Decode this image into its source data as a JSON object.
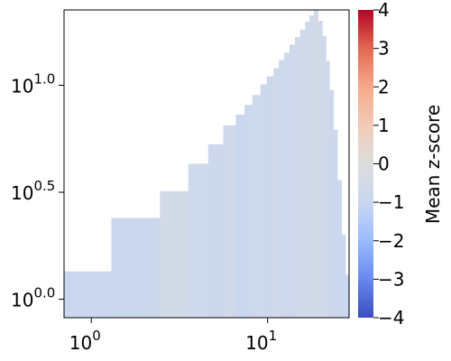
{
  "chart_data": {
    "type": "heatmap",
    "title": "",
    "xlabel": "",
    "ylabel": "",
    "xscale": "log",
    "yscale": "log",
    "xlim": [
      0.7,
      29
    ],
    "ylim": [
      0.82,
      22.5
    ],
    "x_ticks": [
      {
        "value": 1,
        "base": "10",
        "exp": "0"
      },
      {
        "value": 10,
        "base": "10",
        "exp": "1"
      }
    ],
    "y_ticks": [
      {
        "value": 1,
        "base": "10",
        "exp": "0.0"
      },
      {
        "value": 3.1623,
        "base": "10",
        "exp": "0.5"
      },
      {
        "value": 10,
        "base": "10",
        "exp": "1.0"
      }
    ],
    "colorbar": {
      "label": "Mean z-score",
      "min": -4,
      "max": 4,
      "ticks": [
        "4",
        "3",
        "2",
        "1",
        "0",
        "−1",
        "−2",
        "−3",
        "−4"
      ],
      "colormap": "coolwarm",
      "stops": [
        "#3b4cc0",
        "#6788ee",
        "#9abbff",
        "#c9d7f0",
        "#dddddd",
        "#f2cbb7",
        "#f7a889",
        "#e26952",
        "#b40426"
      ]
    },
    "columns": [
      {
        "x0": 0.7,
        "x1": 1.3,
        "ymax": 1.35,
        "value": -0.95
      },
      {
        "x0": 1.3,
        "x1": 2.45,
        "ymax": 2.4,
        "value": -0.85
      },
      {
        "x0": 2.45,
        "x1": 3.55,
        "ymax": 3.2,
        "value": -0.55
      },
      {
        "x0": 3.55,
        "x1": 4.6,
        "ymax": 4.3,
        "value": -0.75
      },
      {
        "x0": 4.6,
        "x1": 5.6,
        "ymax": 5.3,
        "value": -0.8
      },
      {
        "x0": 5.6,
        "x1": 6.6,
        "ymax": 6.5,
        "value": -0.7
      },
      {
        "x0": 6.6,
        "x1": 7.4,
        "ymax": 7.3,
        "value": -1.0
      },
      {
        "x0": 7.4,
        "x1": 8.2,
        "ymax": 8.1,
        "value": -0.85
      },
      {
        "x0": 8.2,
        "x1": 9.1,
        "ymax": 9.0,
        "value": -0.75
      },
      {
        "x0": 9.1,
        "x1": 9.9,
        "ymax": 10.1,
        "value": -0.9
      },
      {
        "x0": 9.9,
        "x1": 10.8,
        "ymax": 11.0,
        "value": -0.8
      },
      {
        "x0": 10.8,
        "x1": 11.6,
        "ymax": 12.0,
        "value": -0.7
      },
      {
        "x0": 11.6,
        "x1": 12.4,
        "ymax": 13.1,
        "value": -0.85
      },
      {
        "x0": 12.4,
        "x1": 13.3,
        "ymax": 14.2,
        "value": -0.75
      },
      {
        "x0": 13.3,
        "x1": 14.3,
        "ymax": 15.5,
        "value": -0.8
      },
      {
        "x0": 14.3,
        "x1": 15.3,
        "ymax": 16.8,
        "value": -0.7
      },
      {
        "x0": 15.3,
        "x1": 16.3,
        "ymax": 18.2,
        "value": -0.75
      },
      {
        "x0": 16.3,
        "x1": 17.3,
        "ymax": 19.8,
        "value": -0.65
      },
      {
        "x0": 17.3,
        "x1": 18.3,
        "ymax": 21.2,
        "value": -0.7
      },
      {
        "x0": 18.3,
        "x1": 19.3,
        "ymax": 22.5,
        "value": -0.55
      },
      {
        "x0": 19.3,
        "x1": 20.4,
        "ymax": 20.0,
        "value": -0.6
      },
      {
        "x0": 20.4,
        "x1": 21.4,
        "ymax": 17.0,
        "value": -0.7
      },
      {
        "x0": 21.4,
        "x1": 22.4,
        "ymax": 13.0,
        "value": -0.75
      },
      {
        "x0": 22.4,
        "x1": 23.6,
        "ymax": 9.5,
        "value": -0.8
      },
      {
        "x0": 23.6,
        "x1": 24.8,
        "ymax": 6.2,
        "value": -0.85
      },
      {
        "x0": 24.8,
        "x1": 26.2,
        "ymax": 3.6,
        "value": -0.9
      },
      {
        "x0": 26.2,
        "x1": 27.6,
        "ymax": 2.0,
        "value": -0.95
      },
      {
        "x0": 27.6,
        "x1": 29.0,
        "ymax": 1.3,
        "value": -1.0
      }
    ]
  }
}
